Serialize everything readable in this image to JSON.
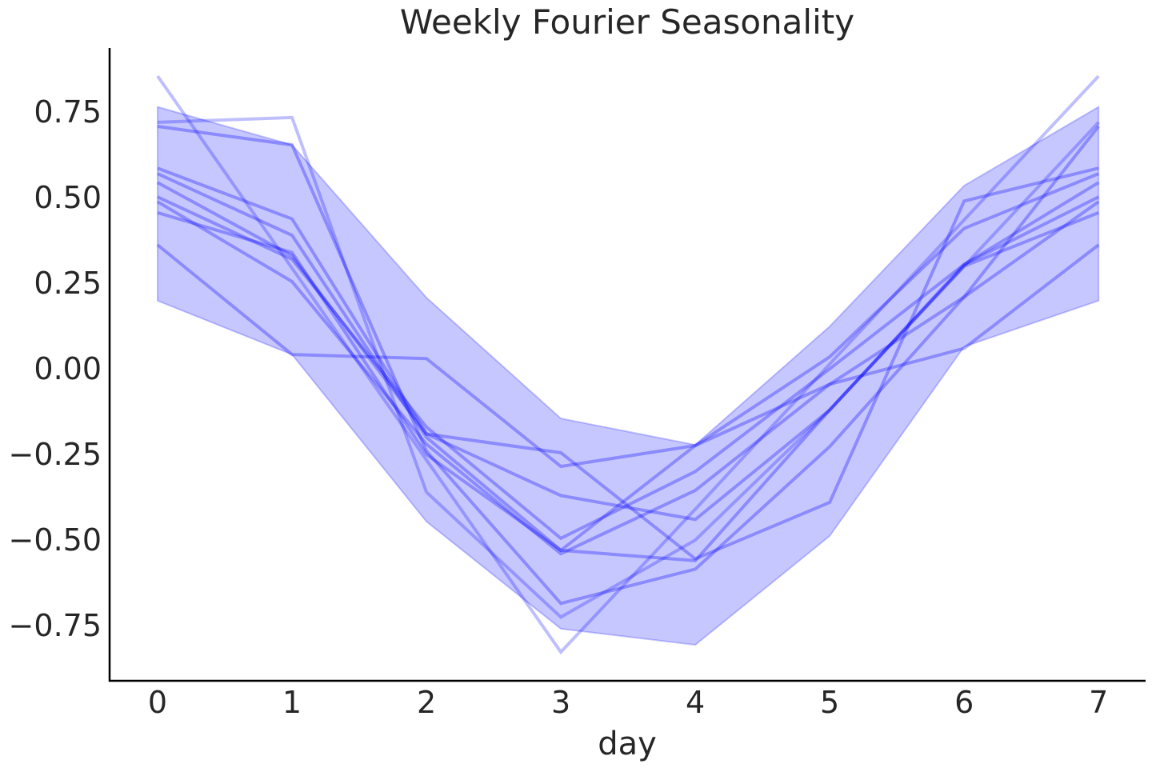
{
  "chart_data": {
    "type": "line",
    "title": "Weekly Fourier Seasonality",
    "xlabel": "day",
    "ylabel": "",
    "xlim": [
      -0.357,
      7.35
    ],
    "ylim": [
      -0.911,
      0.937
    ],
    "grid": false,
    "x": [
      0,
      1,
      2,
      3,
      4,
      5,
      6,
      7
    ],
    "xticks": [
      "0",
      "1",
      "2",
      "3",
      "4",
      "5",
      "6",
      "7"
    ],
    "yticks": [
      0.75,
      0.5,
      0.25,
      0.0,
      -0.25,
      -0.5,
      -0.75
    ],
    "ytick_labels": [
      "0.75",
      "0.50",
      "0.25",
      "0.00",
      "−0.25",
      "−0.50",
      "−0.75"
    ],
    "color": "#0000ff",
    "band": {
      "upper": [
        0.765,
        0.654,
        0.208,
        -0.145,
        -0.222,
        0.124,
        0.535,
        0.765
      ],
      "lower": [
        0.199,
        0.042,
        -0.446,
        -0.759,
        -0.806,
        -0.488,
        0.065,
        0.199
      ]
    },
    "series": [
      {
        "values": [
          0.855,
          0.294,
          -0.266,
          -0.827,
          -0.41,
          0.014,
          0.435,
          0.855
        ],
        "alpha": 0.25
      },
      {
        "values": [
          0.72,
          0.734,
          -0.36,
          -0.725,
          -0.5,
          -0.12,
          0.3,
          0.72
        ],
        "alpha": 0.25
      },
      {
        "values": [
          0.708,
          0.654,
          -0.24,
          -0.685,
          -0.585,
          -0.227,
          0.21,
          0.708
        ],
        "alpha": 0.3
      },
      {
        "values": [
          0.586,
          0.438,
          -0.19,
          -0.245,
          -0.555,
          -0.39,
          0.49,
          0.586
        ],
        "alpha": 0.3
      },
      {
        "values": [
          0.57,
          0.39,
          -0.2,
          -0.53,
          -0.224,
          0.035,
          0.41,
          0.57
        ],
        "alpha": 0.3
      },
      {
        "values": [
          0.544,
          0.33,
          -0.19,
          -0.37,
          -0.44,
          -0.12,
          0.305,
          0.544
        ],
        "alpha": 0.3
      },
      {
        "values": [
          0.502,
          0.32,
          -0.17,
          -0.495,
          -0.3,
          0.0,
          0.305,
          0.502
        ],
        "alpha": 0.3
      },
      {
        "values": [
          0.488,
          0.255,
          -0.22,
          -0.54,
          -0.355,
          -0.045,
          0.21,
          0.488
        ],
        "alpha": 0.3
      },
      {
        "values": [
          0.456,
          0.34,
          -0.25,
          -0.53,
          -0.56,
          -0.12,
          0.3,
          0.456
        ],
        "alpha": 0.3
      },
      {
        "values": [
          0.362,
          0.042,
          0.03,
          -0.285,
          -0.224,
          -0.045,
          0.06,
          0.362
        ],
        "alpha": 0.3
      }
    ]
  }
}
